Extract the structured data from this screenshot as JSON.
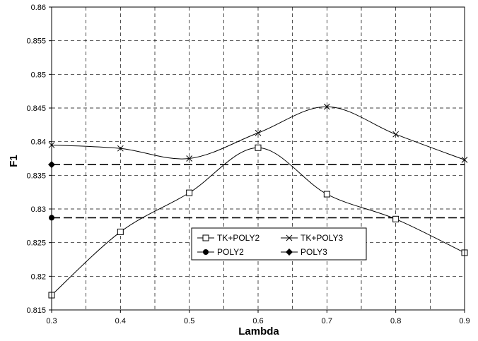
{
  "chart_data": {
    "type": "line",
    "title": "",
    "xlabel": "Lambda",
    "ylabel": "F1",
    "xlim": [
      0.3,
      0.9
    ],
    "ylim": [
      0.815,
      0.86
    ],
    "x_ticks": [
      "0.3",
      "0.4",
      "0.5",
      "0.6",
      "0.7",
      "0.8",
      "0.9"
    ],
    "y_ticks": [
      "0.815",
      "0.82",
      "0.825",
      "0.83",
      "0.835",
      "0.84",
      "0.845",
      "0.85",
      "0.855",
      "0.86"
    ],
    "grid": true,
    "legend_position": "lower-center",
    "series": [
      {
        "name": "TK+POLY2",
        "marker": "square-open",
        "smooth": true,
        "x": [
          0.3,
          0.4,
          0.5,
          0.6,
          0.7,
          0.8,
          0.9
        ],
        "y": [
          0.8172,
          0.8266,
          0.8324,
          0.8391,
          0.8322,
          0.8285,
          0.8235
        ]
      },
      {
        "name": "TK+POLY3",
        "marker": "x",
        "smooth": true,
        "x": [
          0.3,
          0.4,
          0.5,
          0.6,
          0.7,
          0.8,
          0.9
        ],
        "y": [
          0.8395,
          0.839,
          0.8375,
          0.8413,
          0.8452,
          0.8411,
          0.8373
        ]
      },
      {
        "name": "POLY2",
        "marker": "circle-filled",
        "dashed": true,
        "x": [
          0.3,
          0.9
        ],
        "y": [
          0.8287,
          0.8287
        ]
      },
      {
        "name": "POLY3",
        "marker": "diamond-filled",
        "dashed": true,
        "x": [
          0.3,
          0.9
        ],
        "y": [
          0.8366,
          0.8366
        ]
      }
    ]
  }
}
